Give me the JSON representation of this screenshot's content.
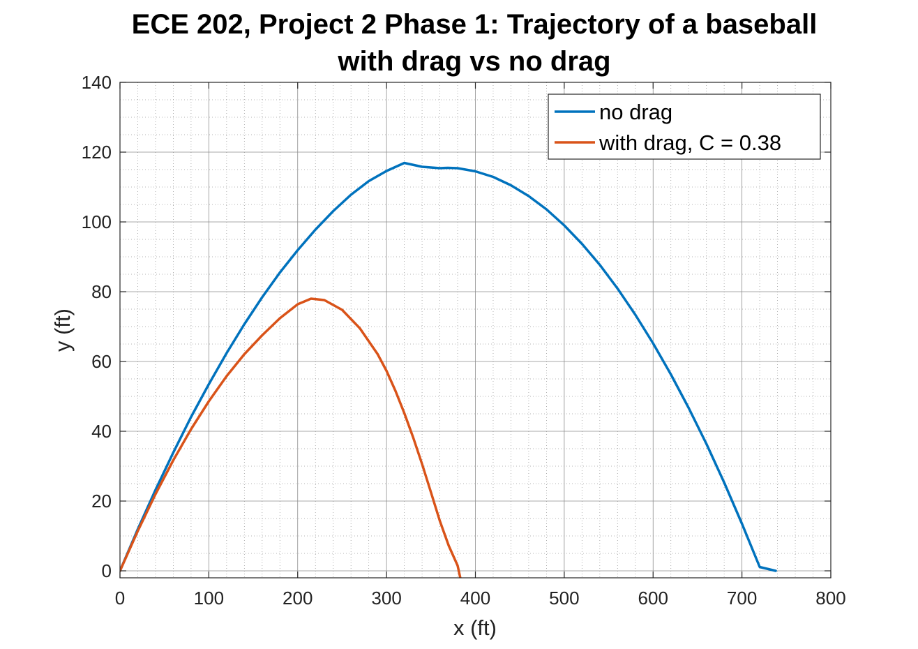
{
  "chart_data": {
    "type": "line",
    "title": [
      "ECE 202, Project 2 Phase 1: Trajectory of a baseball",
      "with drag vs no drag"
    ],
    "xlabel": "x (ft)",
    "ylabel": "y (ft)",
    "xlim": [
      0,
      800
    ],
    "ylim": [
      -2,
      140
    ],
    "xticks": [
      0,
      100,
      200,
      300,
      400,
      500,
      600,
      700,
      800
    ],
    "yticks": [
      0,
      20,
      40,
      60,
      80,
      100,
      120,
      140
    ],
    "grid": true,
    "minor_grid": true,
    "legend": {
      "placement": "top-right",
      "boxed": true
    },
    "series": [
      {
        "name": "no drag",
        "color": "#0072BD",
        "x": [
          0,
          20,
          40,
          60,
          80,
          100,
          120,
          140,
          160,
          180,
          200,
          220,
          240,
          260,
          280,
          300,
          320,
          340,
          360,
          369,
          380,
          400,
          420,
          440,
          460,
          480,
          500,
          520,
          540,
          560,
          580,
          600,
          620,
          640,
          660,
          680,
          700,
          720,
          738
        ],
        "y": [
          0,
          11.9,
          23.2,
          33.9,
          44.1,
          53.5,
          62.4,
          70.7,
          78.4,
          85.5,
          91.9,
          97.8,
          103.1,
          107.8,
          111.7,
          114.6,
          116.9,
          115.8,
          115.4,
          115.5,
          115.4,
          114.5,
          112.9,
          110.5,
          107.4,
          103.6,
          99.0,
          93.7,
          87.7,
          80.9,
          73.4,
          65.2,
          56.3,
          46.7,
          36.4,
          25.3,
          13.5,
          1.1,
          0
        ]
      },
      {
        "name": "with drag, C = 0.38",
        "color": "#D95319",
        "x": [
          0,
          20,
          40,
          60,
          80,
          100,
          120,
          140,
          160,
          180,
          200,
          215,
          230,
          250,
          270,
          290,
          300,
          310,
          320,
          330,
          340,
          350,
          360,
          370,
          380,
          383
        ],
        "y": [
          0,
          11.4,
          22.0,
          31.7,
          40.6,
          48.6,
          55.8,
          62.1,
          67.5,
          72.4,
          76.4,
          78.0,
          77.6,
          74.8,
          69.5,
          62.1,
          57.3,
          51.6,
          45.2,
          38.2,
          30.6,
          22.5,
          14.3,
          7.2,
          1.5,
          -2
        ]
      }
    ]
  }
}
